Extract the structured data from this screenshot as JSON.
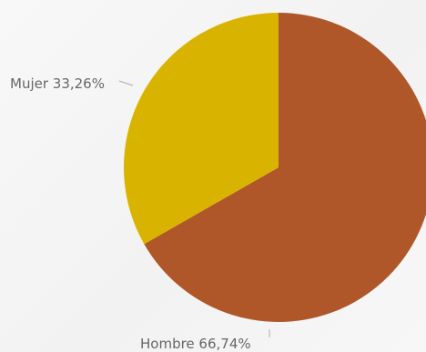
{
  "chart_data": {
    "type": "pie",
    "series": [
      {
        "name": "Hombre",
        "value": 66.74,
        "label": "Hombre 66,74%",
        "color": "#b0572a"
      },
      {
        "name": "Mujer",
        "value": 33.26,
        "label": "Mujer 33,26%",
        "color": "#d8b400"
      }
    ]
  }
}
